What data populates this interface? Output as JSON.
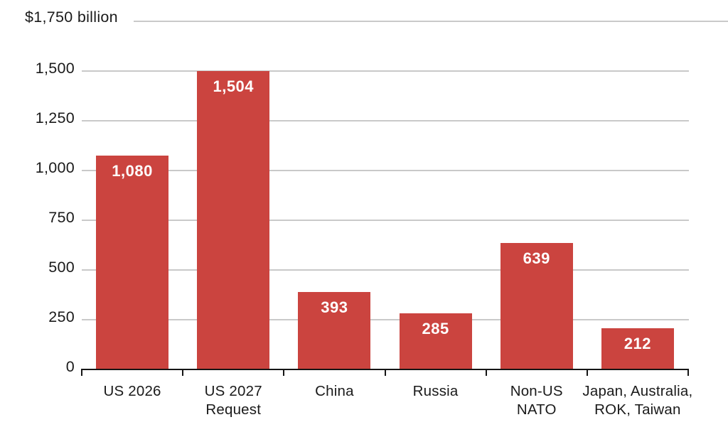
{
  "chart_data": {
    "type": "bar",
    "title": "",
    "top_label": "$1,750 billion",
    "categories": [
      "US 2026",
      "US 2027\nRequest",
      "China",
      "Russia",
      "Non-US\nNATO",
      "Japan, Australia,\nROK, Taiwan"
    ],
    "values": [
      1080,
      1504,
      393,
      285,
      639,
      212
    ],
    "value_labels": [
      "1,080",
      "1,504",
      "393",
      "285",
      "639",
      "212"
    ],
    "xlabel": "",
    "ylabel": "",
    "ylim": [
      0,
      1750
    ],
    "y_ticks": [
      0,
      250,
      500,
      750,
      1000,
      1250,
      1500
    ],
    "y_tick_labels": [
      "0",
      "250",
      "500",
      "750",
      "1,000",
      "1,250",
      "1,500"
    ],
    "grid": true,
    "legend": "none",
    "colors": {
      "bar": "#CB443F",
      "gridline": "#C9C9C9",
      "axis": "#151515",
      "text": "#1A1A1A",
      "value_label": "#FFFFFF",
      "background": "#FFFFFF"
    }
  }
}
